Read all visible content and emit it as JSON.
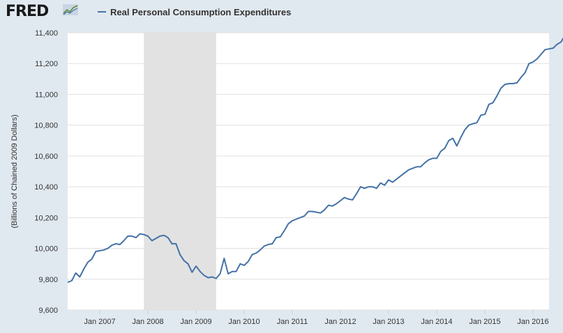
{
  "brand": {
    "logo_text": "FRED"
  },
  "chart_data": {
    "type": "line",
    "title": "",
    "series": [
      {
        "name": "Real Personal Consumption Expenditures",
        "color": "#4572a7",
        "start": "2006-05",
        "values": [
          9780,
          9790,
          9840,
          9815,
          9865,
          9910,
          9930,
          9980,
          9985,
          9990,
          10000,
          10020,
          10030,
          10025,
          10050,
          10080,
          10080,
          10070,
          10095,
          10090,
          10080,
          10050,
          10065,
          10080,
          10085,
          10070,
          10030,
          10030,
          9960,
          9920,
          9900,
          9845,
          9885,
          9850,
          9825,
          9810,
          9815,
          9805,
          9835,
          9935,
          9835,
          9850,
          9850,
          9900,
          9890,
          9915,
          9960,
          9970,
          9990,
          10015,
          10025,
          10030,
          10070,
          10075,
          10115,
          10160,
          10180,
          10190,
          10200,
          10210,
          10240,
          10240,
          10235,
          10230,
          10250,
          10280,
          10275,
          10290,
          10310,
          10330,
          10320,
          10315,
          10355,
          10400,
          10390,
          10400,
          10400,
          10390,
          10425,
          10410,
          10445,
          10430,
          10450,
          10470,
          10490,
          10510,
          10520,
          10530,
          10530,
          10555,
          10575,
          10585,
          10585,
          10630,
          10650,
          10700,
          10715,
          10665,
          10720,
          10770,
          10800,
          10810,
          10815,
          10865,
          10870,
          10935,
          10945,
          10990,
          11040,
          11065,
          11070,
          11070,
          11075,
          11110,
          11140,
          11200,
          11210,
          11230,
          11260,
          11290,
          11295,
          11300,
          11325,
          11340,
          11385
        ]
      }
    ],
    "ylabel": "(Billions of Chained 2009 Dollars)",
    "ylim": [
      9600,
      11400
    ],
    "yticks": [
      "9,600",
      "9,800",
      "10,000",
      "10,200",
      "10,400",
      "10,600",
      "10,800",
      "11,000",
      "11,200",
      "11,400"
    ],
    "xlim": [
      "2006-05",
      "2016-05"
    ],
    "xticks": [
      {
        "label": "Jan 2007",
        "date": "2007-01"
      },
      {
        "label": "Jan 2008",
        "date": "2008-01"
      },
      {
        "label": "Jan 2009",
        "date": "2009-01"
      },
      {
        "label": "Jan 2010",
        "date": "2010-01"
      },
      {
        "label": "Jan 2011",
        "date": "2011-01"
      },
      {
        "label": "Jan 2012",
        "date": "2012-01"
      },
      {
        "label": "Jan 2013",
        "date": "2013-01"
      },
      {
        "label": "Jan 2014",
        "date": "2014-01"
      },
      {
        "label": "Jan 2015",
        "date": "2015-01"
      },
      {
        "label": "Jan 2016",
        "date": "2016-01"
      }
    ],
    "recession": {
      "start": "2007-12",
      "end": "2009-06",
      "color": "#e2e2e2"
    },
    "grid": true
  }
}
